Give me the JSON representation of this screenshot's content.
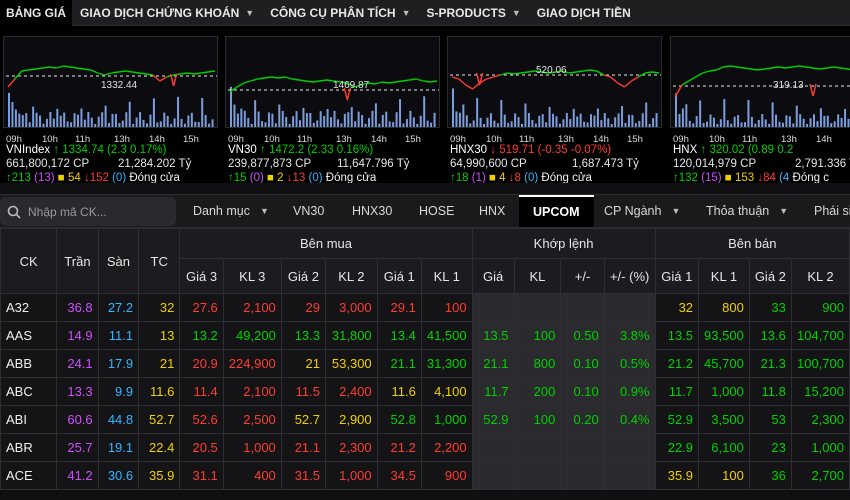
{
  "nav": [
    {
      "label": "BẢNG GIÁ",
      "dropdown": false,
      "active": true
    },
    {
      "label": "GIAO DỊCH CHỨNG KHOÁN",
      "dropdown": true
    },
    {
      "label": "CÔNG CỤ PHÂN TÍCH",
      "dropdown": true
    },
    {
      "label": "S-PRODUCTS",
      "dropdown": true
    },
    {
      "label": "GIAO DỊCH TIỀN",
      "dropdown": false
    }
  ],
  "time_labels": [
    "09h",
    "10h",
    "11h",
    "13h",
    "14h",
    "15h"
  ],
  "indices": [
    {
      "name": "VNIndex",
      "value": "1334.74",
      "change": "(2.3 0.17%)",
      "trend": "up",
      "ref_label": "1332.44",
      "volume": "661,800,172 CP",
      "amount": "21,284.202 Tỷ",
      "up": "213",
      "ceil": "(13)",
      "flat": "54",
      "down": "152",
      "floor": "(0)",
      "status": "Đóng cửa"
    },
    {
      "name": "VN30",
      "value": "1472.2",
      "change": "(2.33 0.16%)",
      "trend": "up",
      "ref_label": "1469.87",
      "volume": "239,877,873 CP",
      "amount": "11,647.796 Tỷ",
      "up": "15",
      "ceil": "(0)",
      "flat": "2",
      "down": "13",
      "floor": "(0)",
      "status": "Đóng cửa"
    },
    {
      "name": "HNX30",
      "value": "519.71",
      "change": "(-0.35 -0.07%)",
      "trend": "down",
      "ref_label": "520.06",
      "volume": "64,990,600 CP",
      "amount": "1,687.473 Tỷ",
      "up": "18",
      "ceil": "(1)",
      "flat": "4",
      "down": "8",
      "floor": "(0)",
      "status": "Đóng cửa"
    },
    {
      "name": "HNX",
      "value": "320.02",
      "change": "(0.89 0.2",
      "trend": "up",
      "ref_label": "319.13",
      "volume": "120,014,979 CP",
      "amount": "2,791.336 Ty",
      "up": "132",
      "ceil": "(15)",
      "flat": "153",
      "down": "84",
      "floor": "(4",
      "status": "Đóng c"
    }
  ],
  "search": {
    "placeholder": "Nhập mã CK..."
  },
  "filter_tabs": [
    {
      "label": "Danh mục",
      "dropdown": true
    },
    {
      "label": "VN30",
      "dropdown": false
    },
    {
      "label": "HNX30",
      "dropdown": false
    },
    {
      "label": "HOSE",
      "dropdown": false
    },
    {
      "label": "HNX",
      "dropdown": false
    },
    {
      "label": "UPCOM",
      "dropdown": false,
      "active": true
    },
    {
      "label": "CP Ngành",
      "dropdown": true
    },
    {
      "label": "Thỏa thuận",
      "dropdown": true
    },
    {
      "label": "Phái si",
      "dropdown": false
    }
  ],
  "table": {
    "headers": {
      "ck": "CK",
      "tran": "Trần",
      "san": "Sàn",
      "tc": "TC",
      "ben_mua": "Bên mua",
      "khop_lenh": "Khớp lệnh",
      "ben_ban": "Bên bán",
      "gia3": "Giá 3",
      "kl3": "KL 3",
      "gia2": "Giá 2",
      "kl2": "KL 2",
      "gia1": "Giá 1",
      "kl1": "KL 1",
      "gia": "Giá",
      "kl": "KL",
      "change": "+/-",
      "change_pct": "+/- (%)",
      "sgia1": "Giá 1",
      "skl1": "KL 1",
      "sgia2": "Giá 2",
      "skl2": "KL 2"
    },
    "rows": [
      {
        "ck": "A32",
        "tran": "36.8",
        "san": "27.2",
        "tc": "32",
        "b3": "27.6",
        "bk3": "2,100",
        "b2": "29",
        "bk2": "3,000",
        "b1": "29.1",
        "bk1": "100",
        "m": "",
        "mk": "",
        "mc": "",
        "mp": "",
        "s1": "32",
        "sk1": "800",
        "s2": "33",
        "sk2": "900",
        "col": {
          "b3": "red",
          "b2": "red",
          "b1": "red",
          "m": "white",
          "s1": "yellow",
          "s2": "green"
        }
      },
      {
        "ck": "AAS",
        "tran": "14.9",
        "san": "11.1",
        "tc": "13",
        "b3": "13.2",
        "bk3": "49,200",
        "b2": "13.3",
        "bk2": "31,800",
        "b1": "13.4",
        "bk1": "41,500",
        "m": "13.5",
        "mk": "100",
        "mc": "0.50",
        "mp": "3.8%",
        "s1": "13.5",
        "sk1": "93,500",
        "s2": "13.6",
        "sk2": "104,700",
        "col": {
          "b3": "green",
          "b2": "green",
          "b1": "green",
          "m": "green",
          "s1": "green",
          "s2": "green"
        }
      },
      {
        "ck": "ABB",
        "tran": "24.1",
        "san": "17.9",
        "tc": "21",
        "b3": "20.9",
        "bk3": "224,900",
        "b2": "21",
        "bk2": "53,300",
        "b1": "21.1",
        "bk1": "31,300",
        "m": "21.1",
        "mk": "800",
        "mc": "0.10",
        "mp": "0.5%",
        "s1": "21.2",
        "sk1": "45,700",
        "s2": "21.3",
        "sk2": "100,700",
        "col": {
          "b3": "red",
          "b2": "yellow",
          "b1": "green",
          "m": "green",
          "s1": "green",
          "s2": "green"
        }
      },
      {
        "ck": "ABC",
        "tran": "13.3",
        "san": "9.9",
        "tc": "11.6",
        "b3": "11.4",
        "bk3": "2,100",
        "b2": "11.5",
        "bk2": "2,400",
        "b1": "11.6",
        "bk1": "4,100",
        "m": "11.7",
        "mk": "200",
        "mc": "0.10",
        "mp": "0.9%",
        "s1": "11.7",
        "sk1": "1,000",
        "s2": "11.8",
        "sk2": "15,200",
        "col": {
          "b3": "red",
          "b2": "red",
          "b1": "yellow",
          "m": "green",
          "s1": "green",
          "s2": "green"
        }
      },
      {
        "ck": "ABI",
        "tran": "60.6",
        "san": "44.8",
        "tc": "52.7",
        "b3": "52.6",
        "bk3": "2,500",
        "b2": "52.7",
        "bk2": "2,900",
        "b1": "52.8",
        "bk1": "1,000",
        "m": "52.9",
        "mk": "100",
        "mc": "0.20",
        "mp": "0.4%",
        "s1": "52.9",
        "sk1": "3,500",
        "s2": "53",
        "sk2": "2,300",
        "col": {
          "b3": "red",
          "b2": "yellow",
          "b1": "green",
          "m": "green",
          "s1": "green",
          "s2": "green"
        }
      },
      {
        "ck": "ABR",
        "tran": "25.7",
        "san": "19.1",
        "tc": "22.4",
        "b3": "20.5",
        "bk3": "1,000",
        "b2": "21.1",
        "bk2": "2,300",
        "b1": "21.2",
        "bk1": "2,200",
        "m": "",
        "mk": "",
        "mc": "",
        "mp": "",
        "s1": "22.9",
        "sk1": "6,100",
        "s2": "23",
        "sk2": "1,000",
        "col": {
          "b3": "red",
          "b2": "red",
          "b1": "red",
          "m": "white",
          "s1": "green",
          "s2": "green"
        }
      },
      {
        "ck": "ACE",
        "tran": "41.2",
        "san": "30.6",
        "tc": "35.9",
        "b3": "31.1",
        "bk3": "400",
        "b2": "31.5",
        "bk2": "1,000",
        "b1": "34.5",
        "bk1": "900",
        "m": "",
        "mk": "",
        "mc": "",
        "mp": "",
        "s1": "35.9",
        "sk1": "100",
        "s2": "36",
        "sk2": "2,700",
        "col": {
          "b3": "red",
          "b2": "red",
          "b1": "red",
          "m": "white",
          "s1": "yellow",
          "s2": "green"
        }
      }
    ]
  },
  "colors": {
    "up": "#00d000",
    "down": "#ff3b30",
    "ref": "#f0d000",
    "ceiling": "#d04dff",
    "floor": "#33b5ff"
  }
}
